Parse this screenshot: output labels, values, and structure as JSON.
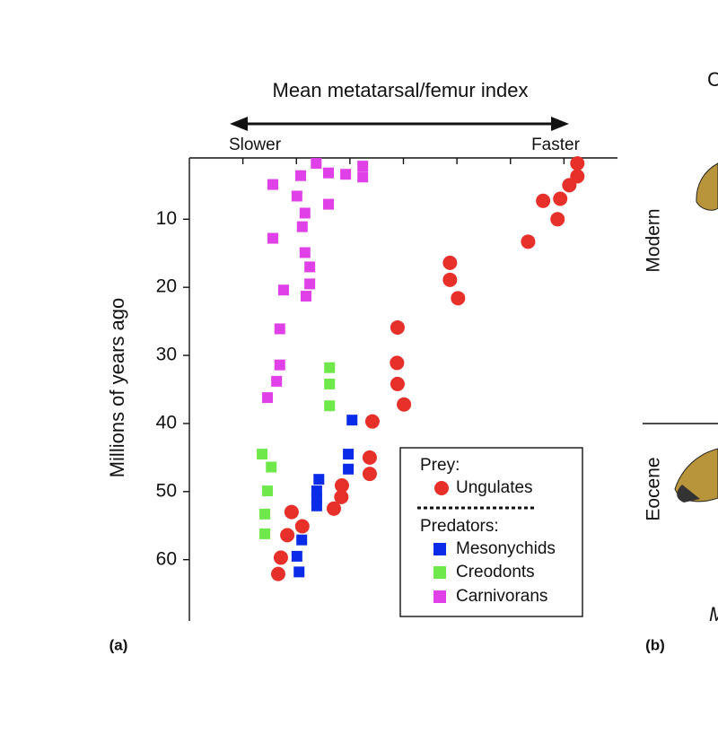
{
  "chart_data": {
    "type": "scatter",
    "title": "Mean metatarsal/femur index",
    "x_left_label": "Slower",
    "x_right_label": "Faster",
    "ylabel": "Millions of years ago",
    "panel_label": "(a)",
    "legend_groups": [
      "Prey:",
      "Predators:"
    ],
    "xlim": [
      0,
      8
    ],
    "xticks": [
      1,
      2,
      3,
      4,
      5,
      6,
      7
    ],
    "ylim": [
      1,
      69
    ],
    "yticks": [
      10,
      20,
      30,
      40,
      50,
      60
    ],
    "y_inverted": true,
    "series": [
      {
        "name": "Ungulates",
        "color": "#e8302a",
        "marker": "circle",
        "x": [
          7.25,
          7.25,
          7.1,
          6.93,
          6.61,
          6.88,
          6.33,
          4.87,
          4.87,
          5.02,
          3.89,
          3.88,
          3.89,
          4.01,
          3.42,
          3.37,
          3.37,
          2.85,
          2.84,
          2.7,
          1.91,
          2.11,
          1.83,
          1.71,
          1.66
        ],
        "values": [
          1.8,
          3.7,
          5.0,
          7.0,
          7.3,
          10.0,
          13.3,
          16.4,
          18.9,
          21.6,
          25.9,
          31.1,
          34.2,
          37.2,
          39.7,
          45.0,
          47.4,
          49.1,
          50.8,
          52.5,
          53.0,
          55.1,
          56.4,
          59.7,
          62.1
        ]
      },
      {
        "name": "Mesonychids",
        "color": "#0a2be8",
        "marker": "square",
        "x": [
          3.04,
          2.97,
          2.97,
          2.42,
          2.38,
          2.38,
          2.38,
          2.1,
          2.01,
          2.05
        ],
        "values": [
          39.5,
          44.5,
          46.7,
          48.2,
          49.9,
          51.1,
          52.1,
          57.1,
          59.5,
          61.8
        ]
      },
      {
        "name": "Creodonts",
        "color": "#6ee84a",
        "marker": "square",
        "x": [
          2.62,
          2.62,
          2.62,
          1.36,
          1.53,
          1.46,
          1.41,
          1.41
        ],
        "values": [
          31.8,
          34.2,
          37.4,
          44.5,
          46.4,
          49.9,
          53.3,
          56.2
        ]
      },
      {
        "name": "Carnivorans",
        "color": "#e040e8",
        "marker": "square",
        "x": [
          2.37,
          2.6,
          2.92,
          3.24,
          3.24,
          2.08,
          1.56,
          2.01,
          2.6,
          2.16,
          2.11,
          1.56,
          2.16,
          2.25,
          2.25,
          1.76,
          2.18,
          1.69,
          1.69,
          1.63,
          1.46
        ],
        "values": [
          1.8,
          3.2,
          3.4,
          2.2,
          3.8,
          3.6,
          4.9,
          6.6,
          7.8,
          9.1,
          11.1,
          12.8,
          14.9,
          17.0,
          19.5,
          20.4,
          21.3,
          26.1,
          31.4,
          33.8,
          36.2
        ]
      }
    ]
  },
  "panel_b": {
    "label": "(b)",
    "top_text": "C",
    "bottom_text": "M",
    "rows": [
      "Modern",
      "Eocene"
    ]
  }
}
